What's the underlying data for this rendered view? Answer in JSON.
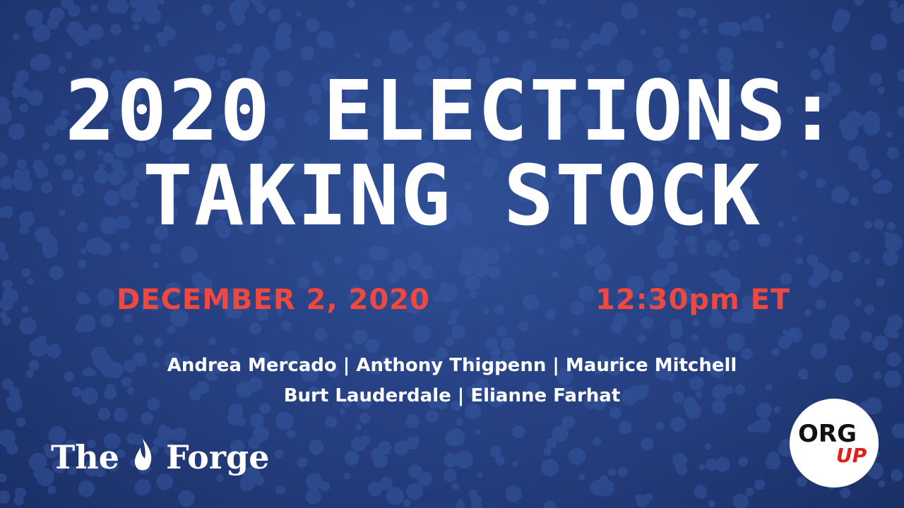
{
  "title": {
    "line1": "2020 ELECTIONS:",
    "line2": "TAKING STOCK"
  },
  "event": {
    "date": "DECEMBER 2, 2020",
    "time": "12:30pm ET"
  },
  "speakers": {
    "line1": "Andrea Mercado | Anthony Thigpenn | Maurice Mitchell",
    "line2": "Burt Lauderdale | Elianne Farhat"
  },
  "logos": {
    "forge_left": "The",
    "forge_right": "Forge",
    "org": "ORG",
    "up": "UP"
  }
}
